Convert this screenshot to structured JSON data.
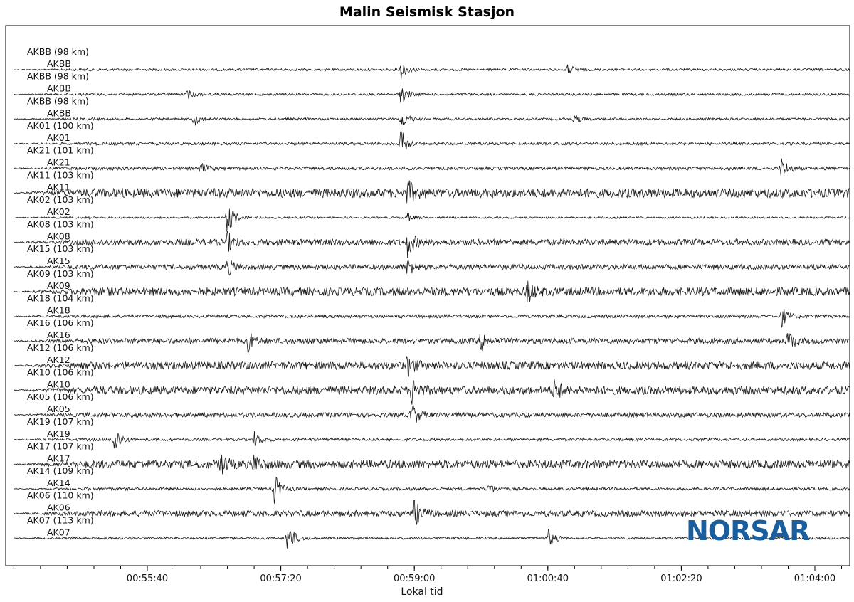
{
  "title": "Malin Seismisk Stasjon",
  "logo": {
    "text": "NORSAR",
    "color": "#1b5e9e"
  },
  "colors": {
    "trace": "#1a1a1a",
    "axis": "#000000"
  },
  "chart_data": {
    "type": "line",
    "subtype": "seismogram-record-section",
    "title": "Malin Seismisk Stasjon",
    "xlabel": "Lokal tid",
    "ylabel": "",
    "x_range": [
      "00:54:00",
      "01:04:20"
    ],
    "x_ticks": [
      "00:55:40",
      "00:57:20",
      "00:59:00",
      "01:00:40",
      "01:02:20",
      "01:04:00"
    ],
    "grid": false,
    "traces": [
      {
        "label": "AKBB (98 km)",
        "name": "AKBB",
        "amplitude": 0.25,
        "events": [
          {
            "t": "00:58:50",
            "a": 1.0
          },
          {
            "t": "01:00:55",
            "a": 0.5
          }
        ]
      },
      {
        "label": "AKBB (98 km)",
        "name": "AKBB",
        "amplitude": 0.25,
        "events": [
          {
            "t": "00:58:50",
            "a": 1.0
          },
          {
            "t": "00:56:10",
            "a": 0.4
          }
        ]
      },
      {
        "label": "AKBB (98 km)",
        "name": "AKBB",
        "amplitude": 0.25,
        "events": [
          {
            "t": "00:58:50",
            "a": 1.0
          },
          {
            "t": "00:56:15",
            "a": 0.7
          },
          {
            "t": "01:01:00",
            "a": 0.4
          }
        ]
      },
      {
        "label": "AK01 (100 km)",
        "name": "AK01",
        "amplitude": 0.3,
        "events": [
          {
            "t": "00:58:50",
            "a": 1.4
          }
        ]
      },
      {
        "label": "AK21 (101 km)",
        "name": "AK21",
        "amplitude": 0.35,
        "events": [
          {
            "t": "00:56:20",
            "a": 0.6
          },
          {
            "t": "01:03:35",
            "a": 1.1
          }
        ]
      },
      {
        "label": "AK11 (103 km)",
        "name": "AK11",
        "amplitude": 1.0,
        "events": [
          {
            "t": "00:58:55",
            "a": 1.2
          }
        ]
      },
      {
        "label": "AK02 (103 km)",
        "name": "AK02",
        "amplitude": 0.2,
        "events": [
          {
            "t": "00:56:40",
            "a": 1.8
          },
          {
            "t": "00:58:55",
            "a": 0.4
          }
        ]
      },
      {
        "label": "AK08 (103 km)",
        "name": "AK08",
        "amplitude": 0.7,
        "events": [
          {
            "t": "00:56:40",
            "a": 0.9
          },
          {
            "t": "00:58:55",
            "a": 1.4
          }
        ]
      },
      {
        "label": "AK15 (103 km)",
        "name": "AK15",
        "amplitude": 0.55,
        "events": [
          {
            "t": "00:56:40",
            "a": 0.8
          },
          {
            "t": "00:58:55",
            "a": 0.9
          }
        ]
      },
      {
        "label": "AK09 (103 km)",
        "name": "AK09",
        "amplitude": 0.9,
        "events": [
          {
            "t": "01:00:25",
            "a": 1.0
          }
        ]
      },
      {
        "label": "AK18 (104 km)",
        "name": "AK18",
        "amplitude": 0.35,
        "events": [
          {
            "t": "01:03:35",
            "a": 1.0
          }
        ]
      },
      {
        "label": "AK16 (106 km)",
        "name": "AK16",
        "amplitude": 0.6,
        "events": [
          {
            "t": "00:56:55",
            "a": 1.1
          },
          {
            "t": "00:59:50",
            "a": 1.0
          },
          {
            "t": "01:03:40",
            "a": 1.0
          }
        ]
      },
      {
        "label": "AK12 (106 km)",
        "name": "AK12",
        "amplitude": 0.85,
        "events": [
          {
            "t": "00:58:55",
            "a": 1.0
          }
        ]
      },
      {
        "label": "AK10 (106 km)",
        "name": "AK10",
        "amplitude": 0.9,
        "events": [
          {
            "t": "00:58:58",
            "a": 1.3
          },
          {
            "t": "01:00:45",
            "a": 1.1
          }
        ]
      },
      {
        "label": "AK05 (106 km)",
        "name": "AK05",
        "amplitude": 0.5,
        "events": [
          {
            "t": "00:58:58",
            "a": 1.3
          }
        ]
      },
      {
        "label": "AK19 (107 km)",
        "name": "AK19",
        "amplitude": 0.3,
        "events": [
          {
            "t": "00:55:15",
            "a": 1.6
          },
          {
            "t": "00:57:00",
            "a": 0.8
          }
        ]
      },
      {
        "label": "AK17 (107 km)",
        "name": "AK17",
        "amplitude": 0.9,
        "events": [
          {
            "t": "00:56:35",
            "a": 0.9
          },
          {
            "t": "00:57:00",
            "a": 0.9
          }
        ]
      },
      {
        "label": "AK14 (109 km)",
        "name": "AK14",
        "amplitude": 0.3,
        "events": [
          {
            "t": "00:57:15",
            "a": 1.6
          },
          {
            "t": "00:59:55",
            "a": 0.6
          }
        ]
      },
      {
        "label": "AK06 (110 km)",
        "name": "AK06",
        "amplitude": 0.65,
        "events": [
          {
            "t": "00:59:00",
            "a": 1.3
          }
        ]
      },
      {
        "label": "AK07 (113 km)",
        "name": "AK07",
        "amplitude": 0.25,
        "events": [
          {
            "t": "00:57:25",
            "a": 1.7
          },
          {
            "t": "01:00:40",
            "a": 1.0
          }
        ]
      }
    ]
  }
}
